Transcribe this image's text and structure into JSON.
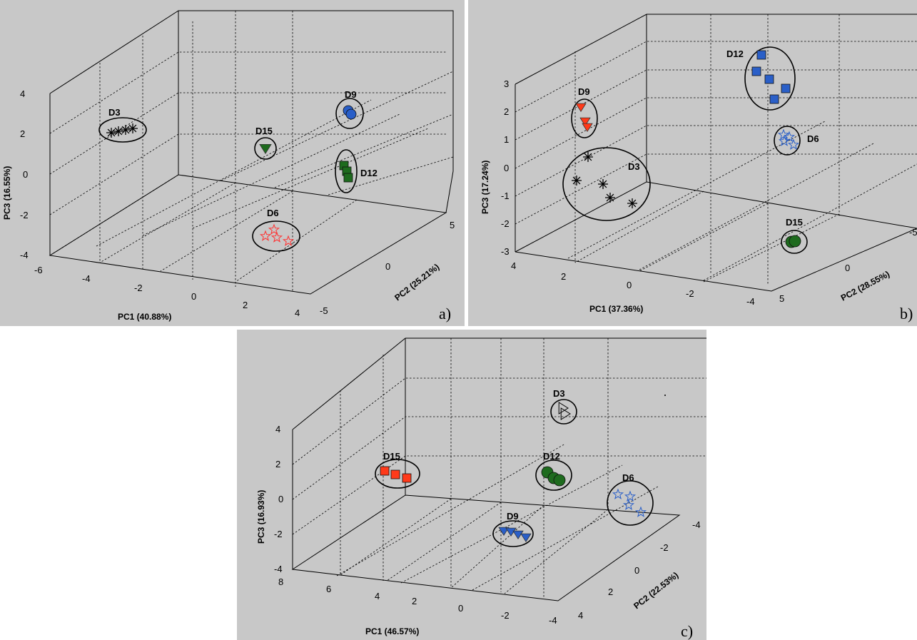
{
  "chart_data": [
    {
      "type": "scatter",
      "panel_label": "a)",
      "xlabel": "PC1 (40.88%)",
      "ylabel": "PC2 (25.21%)",
      "zlabel": "PC3 (16.55%)",
      "xlim": [
        -6,
        4
      ],
      "ylim": [
        -5,
        5
      ],
      "zlim": [
        -4,
        4
      ],
      "x_ticks": [
        "-6",
        "-4",
        "-2",
        "0",
        "2",
        "4"
      ],
      "y_ticks": [
        "-5",
        "0",
        "5"
      ],
      "z_ticks": [
        "-4",
        "-2",
        "0",
        "2",
        "4"
      ],
      "grid": true,
      "series": [
        {
          "name": "D3",
          "marker": "asterisk",
          "color": "#000000",
          "fill": "none"
        },
        {
          "name": "D15",
          "marker": "triangle-down",
          "color": "#1e6b1e",
          "fill": "#1e6b1e"
        },
        {
          "name": "D9",
          "marker": "circle",
          "color": "#2a5fc8",
          "fill": "#2a5fc8"
        },
        {
          "name": "D12",
          "marker": "square",
          "color": "#1e6b1e",
          "fill": "#1e6b1e"
        },
        {
          "name": "D6",
          "marker": "star",
          "color": "#ff3030",
          "fill": "none"
        }
      ]
    },
    {
      "type": "scatter",
      "panel_label": "b)",
      "xlabel": "PC1 (37.36%)",
      "ylabel": "PC2 (28.55%)",
      "zlabel": "PC3 (17.24%)",
      "xlim": [
        -4,
        4
      ],
      "ylim": [
        -5,
        5
      ],
      "zlim": [
        -3,
        3
      ],
      "x_ticks": [
        "4",
        "2",
        "0",
        "-2",
        "-4"
      ],
      "y_ticks": [
        "5",
        "0",
        "-5"
      ],
      "z_ticks": [
        "-3",
        "-2",
        "-1",
        "0",
        "1",
        "2",
        "3"
      ],
      "grid": true,
      "series": [
        {
          "name": "D12",
          "marker": "square",
          "color": "#2a5fc8",
          "fill": "#2a5fc8"
        },
        {
          "name": "D9",
          "marker": "triangle-down",
          "color": "#ff3a1a",
          "fill": "#ff3a1a"
        },
        {
          "name": "D3",
          "marker": "asterisk",
          "color": "#000000",
          "fill": "none"
        },
        {
          "name": "D6",
          "marker": "star",
          "color": "#2a5fc8",
          "fill": "none"
        },
        {
          "name": "D15",
          "marker": "circle",
          "color": "#1e6b1e",
          "fill": "#1e6b1e"
        }
      ]
    },
    {
      "type": "scatter",
      "panel_label": "c)",
      "xlabel": "PC1 (46.57%)",
      "ylabel": "PC2 (22.53%)",
      "zlabel": "PC3 (16.93%)",
      "xlim": [
        -4,
        8
      ],
      "ylim": [
        -4,
        4
      ],
      "zlim": [
        -4,
        4
      ],
      "x_ticks": [
        "8",
        "6",
        "4",
        "2",
        "0",
        "-2",
        "-4"
      ],
      "y_ticks": [
        "-4",
        "-2",
        "0",
        "2",
        "4"
      ],
      "z_ticks": [
        "-4",
        "-2",
        "0",
        "2",
        "4"
      ],
      "grid": true,
      "series": [
        {
          "name": "D3",
          "marker": "triangle-right",
          "color": "#000000",
          "fill": "none"
        },
        {
          "name": "D15",
          "marker": "square",
          "color": "#ff3a1a",
          "fill": "#ff3a1a"
        },
        {
          "name": "D12",
          "marker": "circle",
          "color": "#1e6b1e",
          "fill": "#1e6b1e"
        },
        {
          "name": "D6",
          "marker": "star",
          "color": "#2a5fc8",
          "fill": "none"
        },
        {
          "name": "D9",
          "marker": "triangle-down",
          "color": "#2a5fc8",
          "fill": "#2a5fc8"
        }
      ]
    }
  ]
}
